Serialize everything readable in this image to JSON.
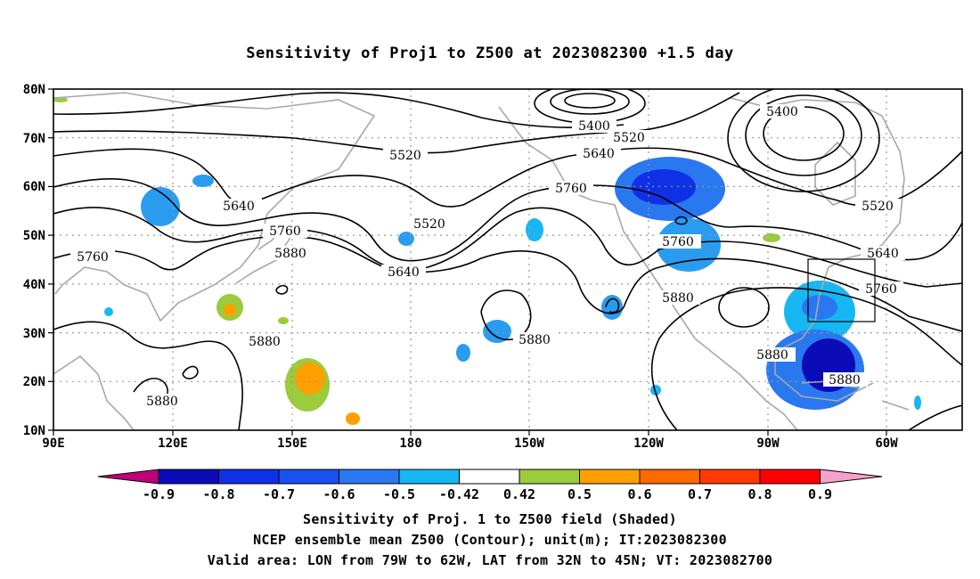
{
  "title": "Sensitivity of Proj1 to Z500 at 2023082300 +1.5 day",
  "map": {
    "lat_labels": [
      "80N",
      "70N",
      "60N",
      "50N",
      "40N",
      "30N",
      "20N",
      "10N"
    ],
    "lon_labels": [
      "90E",
      "120E",
      "150E",
      "180",
      "150W",
      "120W",
      "90W",
      "60W"
    ],
    "contour_labels": [
      "5400",
      "5400",
      "5520",
      "5520",
      "5520",
      "5520",
      "5640",
      "5640",
      "5640",
      "5640",
      "5760",
      "5760",
      "5760",
      "5760",
      "5760",
      "5880",
      "5880",
      "5880",
      "5880",
      "5880",
      "5880"
    ],
    "box": {
      "lon": [
        -79,
        -62
      ],
      "lat": [
        32,
        45
      ]
    }
  },
  "colorbar": {
    "labels": [
      "-0.9",
      "-0.8",
      "-0.7",
      "-0.6",
      "-0.5",
      "-0.42",
      "0.42",
      "0.5",
      "0.6",
      "0.7",
      "0.8",
      "0.9"
    ],
    "colors": [
      "#0b0bb8",
      "#1030e6",
      "#1a4ff0",
      "#2a78f0",
      "#17b7f3",
      "#ffffff",
      "#9ccb3c",
      "#ffa000",
      "#ff6a00",
      "#ff3a00",
      "#ff0000"
    ],
    "low_extend_color": "#c0007a",
    "high_extend_color": "#f6a1cc"
  },
  "captions": [
    "Sensitivity of Proj. 1 to Z500 field (Shaded)",
    "NCEP ensemble mean Z500 (Contour); unit(m); IT:2023082300",
    "Valid area: LON from 79W to 62W, LAT from 32N to 45N; VT: 2023082700"
  ]
}
